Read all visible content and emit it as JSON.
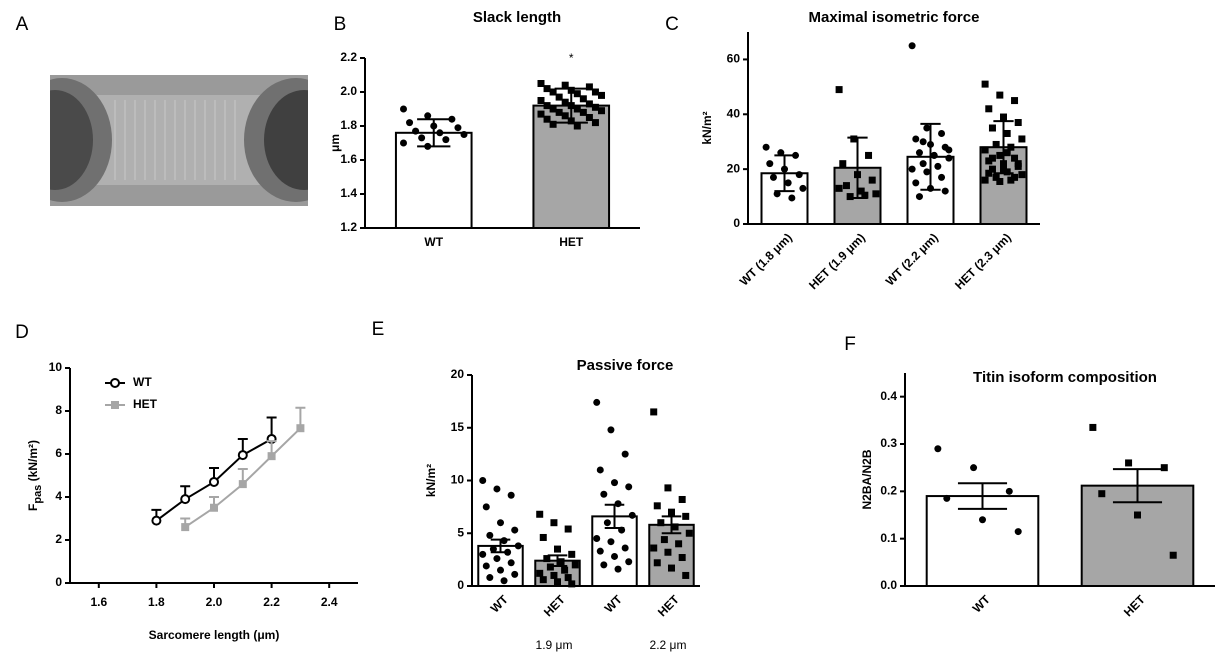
{
  "chart_data": [
    {
      "type": "image",
      "panel": "A"
    },
    {
      "type": "bar",
      "panel": "B",
      "title": "Slack length",
      "y_label": "μm",
      "annotation": "*",
      "categories": [
        "WT",
        "HET"
      ],
      "values": [
        1.76,
        1.92
      ],
      "errors": [
        0.08,
        0.1
      ],
      "colors": [
        "#ffffff",
        "#a6a6a6"
      ],
      "markers": [
        "circle",
        "square"
      ],
      "points": [
        [
          1.9,
          1.86,
          1.84,
          1.82,
          1.8,
          1.79,
          1.77,
          1.76,
          1.75,
          1.73,
          1.72,
          1.7,
          1.68
        ],
        [
          2.05,
          2.04,
          2.03,
          2.02,
          2.01,
          2.0,
          2.0,
          1.99,
          1.98,
          1.97,
          1.96,
          1.95,
          1.94,
          1.93,
          1.92,
          1.92,
          1.91,
          1.9,
          1.9,
          1.89,
          1.88,
          1.88,
          1.87,
          1.86,
          1.85,
          1.84,
          1.83,
          1.82,
          1.81,
          1.8
        ]
      ],
      "ylim": [
        1.2,
        2.2
      ],
      "yticks": [
        1.2,
        1.4,
        1.6,
        1.8,
        {
          "value": 2,
          "label": "2.0"
        },
        2.2
      ]
    },
    {
      "type": "bar",
      "panel": "C",
      "title": "Maximal isometric force",
      "y_label": "kN/m²",
      "categories": [
        "WT (1.8 μm)",
        "HET (1.9 μm)",
        "WT (2.2 μm)",
        "HET (2.3 μm)"
      ],
      "values": [
        18.5,
        20.5,
        24.5,
        28
      ],
      "errors": [
        6.5,
        11,
        12,
        9.5
      ],
      "colors": [
        "#ffffff",
        "#a6a6a6",
        "#ffffff",
        "#a6a6a6"
      ],
      "markers": [
        "circle",
        "square",
        "circle",
        "square"
      ],
      "points": [
        [
          28,
          26,
          25,
          22,
          20,
          18,
          17,
          15,
          13,
          11,
          9.5
        ],
        [
          49,
          31,
          25,
          22,
          18,
          16,
          14,
          12,
          11,
          10,
          10.5,
          13
        ],
        [
          65,
          35,
          33,
          31,
          29,
          28,
          26,
          25,
          24,
          22,
          21,
          20,
          19,
          17,
          15,
          13,
          12,
          10,
          25,
          27,
          30
        ],
        [
          51,
          47,
          45,
          42,
          39,
          37,
          35,
          33,
          31,
          29,
          28,
          27,
          25,
          24,
          23,
          22,
          21,
          20,
          19,
          18,
          17,
          16,
          16,
          15.5,
          17,
          18.5,
          20,
          22,
          24,
          26
        ]
      ],
      "ylim": [
        0,
        70
      ],
      "yticks": [
        0,
        20,
        40,
        60
      ]
    },
    {
      "type": "line",
      "panel": "D",
      "x_label": "Sarcomere length (μm)",
      "y_label": "F",
      "y_label_sub": "pas",
      "y_label_unit": " (kN/m²)",
      "series": [
        {
          "name": "WT",
          "color": "#000000",
          "marker": "circle",
          "x": [
            1.8,
            1.9,
            2.0,
            2.1,
            2.2
          ],
          "values": [
            2.9,
            3.9,
            4.7,
            5.95,
            6.7
          ],
          "errors": [
            0.5,
            0.6,
            0.65,
            0.75,
            1.0
          ]
        },
        {
          "name": "HET",
          "color": "#a6a6a6",
          "marker": "square",
          "x": [
            1.9,
            2.0,
            2.1,
            2.2,
            2.3
          ],
          "values": [
            2.6,
            3.5,
            4.6,
            5.9,
            7.2
          ],
          "errors": [
            0.4,
            0.5,
            0.7,
            0.7,
            0.95
          ]
        }
      ],
      "legend": "upper left",
      "xlim": [
        1.5,
        2.5
      ],
      "xticks": [
        1.6,
        1.8,
        {
          "value": 2,
          "label": "2.0"
        },
        2.2,
        2.4
      ],
      "ylim": [
        0,
        10
      ],
      "yticks": [
        0,
        2,
        4,
        6,
        8,
        10
      ]
    },
    {
      "type": "bar",
      "panel": "E",
      "title": "Passive force",
      "y_label": "kN/m²",
      "categories": [
        "WT",
        "HET",
        "WT",
        "HET"
      ],
      "groups": [
        "1.9 μm",
        "2.2 μm"
      ],
      "values": [
        3.8,
        2.4,
        6.6,
        5.8
      ],
      "errors": [
        0.6,
        0.5,
        1.1,
        0.8
      ],
      "colors": [
        "#ffffff",
        "#a6a6a6",
        "#ffffff",
        "#a6a6a6"
      ],
      "markers": [
        "circle",
        "square",
        "circle",
        "square"
      ],
      "points": [
        [
          10,
          9.2,
          8.6,
          7.5,
          6,
          5.3,
          4.8,
          4.3,
          3.8,
          3.5,
          3.2,
          3,
          2.6,
          2.2,
          1.9,
          1.5,
          1.1,
          0.8,
          0.5
        ],
        [
          6.8,
          6,
          5.4,
          4.6,
          3.5,
          3,
          2.6,
          2.3,
          2,
          1.8,
          1.5,
          1.2,
          1,
          0.8,
          0.6,
          0.4,
          0.2
        ],
        [
          17.4,
          14.8,
          12.5,
          11,
          9.8,
          9.4,
          8.7,
          7.8,
          6.7,
          6,
          5.3,
          4.5,
          4.2,
          3.6,
          3.3,
          2.8,
          2.3,
          2,
          1.6
        ],
        [
          16.5,
          9.3,
          8.2,
          7.6,
          7,
          6.6,
          6,
          5.6,
          5,
          4.4,
          4,
          3.6,
          3.2,
          2.7,
          2.2,
          1.7,
          1
        ]
      ],
      "ylim": [
        0,
        20
      ],
      "yticks": [
        0,
        5,
        10,
        15,
        20
      ]
    },
    {
      "type": "bar",
      "panel": "F",
      "title": "Titin isoform composition",
      "y_label": "N2BA/N2B",
      "categories": [
        "WT",
        "HET"
      ],
      "values": [
        0.19,
        0.212
      ],
      "errors": [
        0.027,
        0.035
      ],
      "colors": [
        "#ffffff",
        "#a6a6a6"
      ],
      "markers": [
        "circle",
        "square"
      ],
      "points": [
        [
          0.29,
          0.25,
          0.2,
          0.185,
          0.14,
          0.115
        ],
        [
          0.335,
          0.26,
          0.25,
          0.195,
          0.15,
          0.065
        ]
      ],
      "ylim": [
        0,
        0.45
      ],
      "yticks": [
        {
          "value": 0,
          "label": "0.0"
        },
        0.1,
        0.2,
        0.3,
        0.4
      ]
    }
  ]
}
